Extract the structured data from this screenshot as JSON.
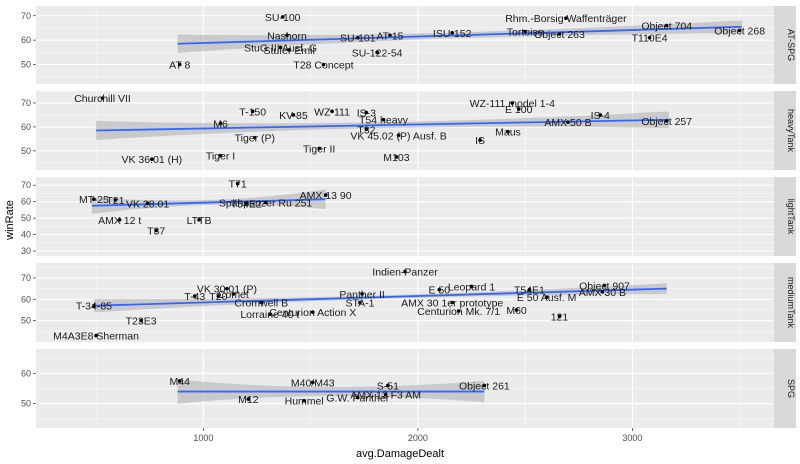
{
  "chart_data": {
    "type": "scatter",
    "xlabel": "avg.DamageDealt",
    "ylabel": "winRate",
    "xlim": [
      220,
      3660
    ],
    "x_ticks": [
      1000,
      2000,
      3000
    ],
    "facet_colors": {
      "panel_bg": "#ebebeb",
      "grid": "#ffffff",
      "strip_bg": "#d9d9d9",
      "point": "#000000",
      "trend": "#3366ff",
      "ribbon": "#b3b3b3"
    },
    "panels": [
      {
        "facet": "AT-SPG",
        "ylim": [
          42,
          74
        ],
        "y_ticks": [
          50,
          60,
          70
        ],
        "trend": {
          "x": [
            880,
            3510
          ],
          "y": [
            58.5,
            65.5
          ],
          "se_start": 3.8,
          "se_mid": 1.2,
          "se_end": 2.6
        },
        "points": [
          {
            "label": "SU-100",
            "x": 1370,
            "y": 69.5
          },
          {
            "label": "Rhm.-Borsig Waffenträger",
            "x": 2690,
            "y": 69
          },
          {
            "label": "Object 704",
            "x": 3160,
            "y": 66
          },
          {
            "label": "Tortoise",
            "x": 2500,
            "y": 63.5
          },
          {
            "label": "ISU-152",
            "x": 2160,
            "y": 63
          },
          {
            "label": "AT 15",
            "x": 1870,
            "y": 62
          },
          {
            "label": "Nashorn",
            "x": 1390,
            "y": 62
          },
          {
            "label": "SU-101",
            "x": 1720,
            "y": 61
          },
          {
            "label": "Object 263",
            "x": 2660,
            "y": 62.5
          },
          {
            "label": "Object 268",
            "x": 3500,
            "y": 64
          },
          {
            "label": "T110E4",
            "x": 3080,
            "y": 61
          },
          {
            "label": "StuG III Ausf. G",
            "x": 1360,
            "y": 57
          },
          {
            "label": "Stufer Emil",
            "x": 1400,
            "y": 56
          },
          {
            "label": "SU-122-54",
            "x": 1810,
            "y": 55
          },
          {
            "label": "T28 Concept",
            "x": 1560,
            "y": 50
          },
          {
            "label": "AT 8",
            "x": 890,
            "y": 50
          }
        ]
      },
      {
        "facet": "heavyTank",
        "ylim": [
          42,
          75
        ],
        "y_ticks": [
          50,
          60,
          70
        ],
        "trend": {
          "x": [
            500,
            3170
          ],
          "y": [
            58.5,
            63
          ],
          "se_start": 4,
          "se_mid": 1.2,
          "se_end": 3.5
        },
        "points": [
          {
            "label": "Churchill VII",
            "x": 530,
            "y": 72
          },
          {
            "label": "WZ-111 model 1-4",
            "x": 2440,
            "y": 70
          },
          {
            "label": "E 100",
            "x": 2470,
            "y": 67.5
          },
          {
            "label": "WZ-111",
            "x": 1600,
            "y": 66.5
          },
          {
            "label": "IS-3",
            "x": 1760,
            "y": 66
          },
          {
            "label": "KV-85",
            "x": 1420,
            "y": 65
          },
          {
            "label": "T-150",
            "x": 1230,
            "y": 66.5
          },
          {
            "label": "IS-4",
            "x": 2850,
            "y": 65
          },
          {
            "label": "T54 heavy",
            "x": 1840,
            "y": 63
          },
          {
            "label": "AMX 50 B",
            "x": 2700,
            "y": 62
          },
          {
            "label": "Maus",
            "x": 2420,
            "y": 58
          },
          {
            "label": "M6",
            "x": 1080,
            "y": 61.5
          },
          {
            "label": "VK 45.02 (P) Ausf. B",
            "x": 1910,
            "y": 56.5
          },
          {
            "label": "Tiger (P)",
            "x": 1240,
            "y": 55.5
          },
          {
            "label": "Tiger II",
            "x": 1540,
            "y": 51
          },
          {
            "label": "M103",
            "x": 1900,
            "y": 47.5
          },
          {
            "label": "Tiger I",
            "x": 1080,
            "y": 48
          },
          {
            "label": "VK 36.01 (H)",
            "x": 760,
            "y": 46.5
          },
          {
            "label": "T32",
            "x": 1760,
            "y": 59
          },
          {
            "label": "IS",
            "x": 2290,
            "y": 54.5
          },
          {
            "label": "Object 257",
            "x": 3160,
            "y": 62.5
          }
        ]
      },
      {
        "facet": "lightTank",
        "ylim": [
          27,
          75
        ],
        "y_ticks": [
          30,
          40,
          50,
          60,
          70
        ],
        "trend": {
          "x": [
            480,
            1570
          ],
          "y": [
            57.5,
            61.5
          ],
          "se_start": 5,
          "se_mid": 1.5,
          "se_end": 6
        },
        "points": [
          {
            "label": "T71",
            "x": 1160,
            "y": 71
          },
          {
            "label": "MT-25",
            "x": 490,
            "y": 61.5
          },
          {
            "label": "T21",
            "x": 590,
            "y": 61
          },
          {
            "label": "VK 28.01",
            "x": 740,
            "y": 59
          },
          {
            "label": "Spähpanzer Ru 251",
            "x": 1290,
            "y": 59.5
          },
          {
            "label": "AMX 12 t",
            "x": 610,
            "y": 49
          },
          {
            "label": "LTTB",
            "x": 980,
            "y": 49
          },
          {
            "label": "T37",
            "x": 780,
            "y": 42.5
          },
          {
            "label": "AMX 13 90",
            "x": 1570,
            "y": 64
          },
          {
            "label": "T54E2",
            "x": 1200,
            "y": 59
          }
        ]
      },
      {
        "facet": "mediumTank",
        "ylim": [
          40,
          77
        ],
        "y_ticks": [
          50,
          60,
          70
        ],
        "trend": {
          "x": [
            490,
            3160
          ],
          "y": [
            57,
            65
          ],
          "se_start": 3.2,
          "se_mid": 0.8,
          "se_end": 2.5
        },
        "points": [
          {
            "label": "Indien-Panzer",
            "x": 1940,
            "y": 73
          },
          {
            "label": "Object 907",
            "x": 2870,
            "y": 66.5
          },
          {
            "label": "E 50",
            "x": 2100,
            "y": 64.5
          },
          {
            "label": "T54E1",
            "x": 2520,
            "y": 64.5
          },
          {
            "label": "VK 30.01 (P)",
            "x": 1110,
            "y": 65
          },
          {
            "label": "Comet",
            "x": 1140,
            "y": 62.5
          },
          {
            "label": "T-43",
            "x": 960,
            "y": 61.5
          },
          {
            "label": "T20",
            "x": 1070,
            "y": 61.5
          },
          {
            "label": "Panther II",
            "x": 1740,
            "y": 62.5
          },
          {
            "label": "E 50 Ausf. M",
            "x": 2600,
            "y": 61
          },
          {
            "label": "Cromwell B",
            "x": 1270,
            "y": 58.5
          },
          {
            "label": "STA-1",
            "x": 1730,
            "y": 58.5
          },
          {
            "label": "AMX 30 1er prototype",
            "x": 2160,
            "y": 58.5
          },
          {
            "label": "T-34-85",
            "x": 490,
            "y": 57
          },
          {
            "label": "Centurion Mk. 7/1",
            "x": 2190,
            "y": 54.5
          },
          {
            "label": "M60",
            "x": 2460,
            "y": 55
          },
          {
            "label": "121",
            "x": 2660,
            "y": 52
          },
          {
            "label": "Lorraine 40 t",
            "x": 1310,
            "y": 53
          },
          {
            "label": "T23E3",
            "x": 710,
            "y": 50
          },
          {
            "label": "M4A3E8 Sherman",
            "x": 500,
            "y": 43
          },
          {
            "label": "Leopard 1",
            "x": 2250,
            "y": 66
          },
          {
            "label": "AMX 30 B",
            "x": 2860,
            "y": 63.5
          },
          {
            "label": "Centurion Action X",
            "x": 1510,
            "y": 54
          }
        ]
      },
      {
        "facet": "SPG",
        "ylim": [
          42,
          68
        ],
        "y_ticks": [
          50,
          60
        ],
        "trend": {
          "x": [
            880,
            2310
          ],
          "y": [
            54,
            54
          ],
          "se_start": 4,
          "se_mid": 1.5,
          "se_end": 3.5
        },
        "points": [
          {
            "label": "M44",
            "x": 890,
            "y": 57.5
          },
          {
            "label": "M40/M43",
            "x": 1510,
            "y": 57
          },
          {
            "label": "S-51",
            "x": 1860,
            "y": 56
          },
          {
            "label": "Object 261",
            "x": 2310,
            "y": 56
          },
          {
            "label": "AMX 13 F3 AM",
            "x": 1850,
            "y": 53
          },
          {
            "label": "M12",
            "x": 1210,
            "y": 51.5
          },
          {
            "label": "Hummel",
            "x": 1470,
            "y": 51
          },
          {
            "label": "G.W. Panther",
            "x": 1720,
            "y": 52
          }
        ]
      }
    ]
  }
}
